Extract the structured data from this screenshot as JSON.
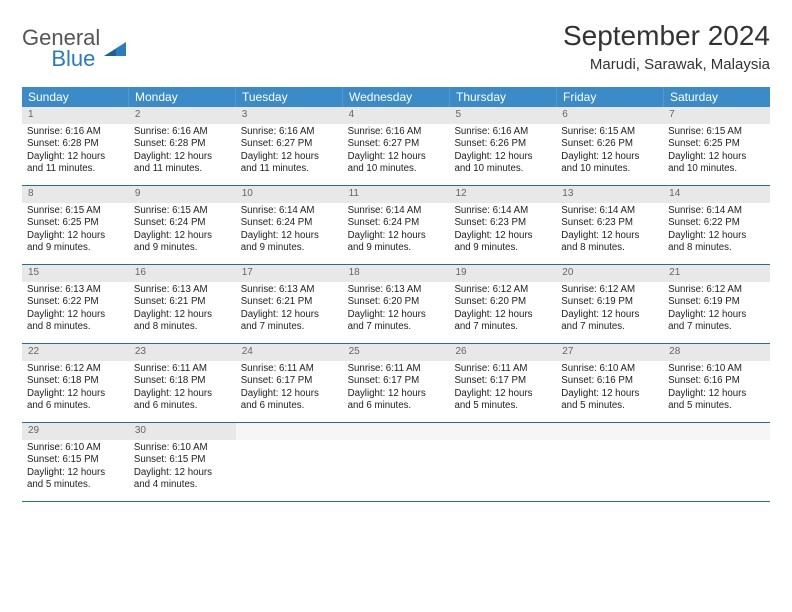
{
  "logo": {
    "line1": "General",
    "line2": "Blue"
  },
  "title": "September 2024",
  "location": "Marudi, Sarawak, Malaysia",
  "colors": {
    "header_bg": "#3b8bc9",
    "week_divider": "#2a6aa0",
    "daynum_bg": "#e8e8e8",
    "brand_blue": "#2a7bbf"
  },
  "weekdays": [
    "Sunday",
    "Monday",
    "Tuesday",
    "Wednesday",
    "Thursday",
    "Friday",
    "Saturday"
  ],
  "weeks": [
    [
      {
        "n": "1",
        "sr": "Sunrise: 6:16 AM",
        "ss": "Sunset: 6:28 PM",
        "d1": "Daylight: 12 hours",
        "d2": "and 11 minutes."
      },
      {
        "n": "2",
        "sr": "Sunrise: 6:16 AM",
        "ss": "Sunset: 6:28 PM",
        "d1": "Daylight: 12 hours",
        "d2": "and 11 minutes."
      },
      {
        "n": "3",
        "sr": "Sunrise: 6:16 AM",
        "ss": "Sunset: 6:27 PM",
        "d1": "Daylight: 12 hours",
        "d2": "and 11 minutes."
      },
      {
        "n": "4",
        "sr": "Sunrise: 6:16 AM",
        "ss": "Sunset: 6:27 PM",
        "d1": "Daylight: 12 hours",
        "d2": "and 10 minutes."
      },
      {
        "n": "5",
        "sr": "Sunrise: 6:16 AM",
        "ss": "Sunset: 6:26 PM",
        "d1": "Daylight: 12 hours",
        "d2": "and 10 minutes."
      },
      {
        "n": "6",
        "sr": "Sunrise: 6:15 AM",
        "ss": "Sunset: 6:26 PM",
        "d1": "Daylight: 12 hours",
        "d2": "and 10 minutes."
      },
      {
        "n": "7",
        "sr": "Sunrise: 6:15 AM",
        "ss": "Sunset: 6:25 PM",
        "d1": "Daylight: 12 hours",
        "d2": "and 10 minutes."
      }
    ],
    [
      {
        "n": "8",
        "sr": "Sunrise: 6:15 AM",
        "ss": "Sunset: 6:25 PM",
        "d1": "Daylight: 12 hours",
        "d2": "and 9 minutes."
      },
      {
        "n": "9",
        "sr": "Sunrise: 6:15 AM",
        "ss": "Sunset: 6:24 PM",
        "d1": "Daylight: 12 hours",
        "d2": "and 9 minutes."
      },
      {
        "n": "10",
        "sr": "Sunrise: 6:14 AM",
        "ss": "Sunset: 6:24 PM",
        "d1": "Daylight: 12 hours",
        "d2": "and 9 minutes."
      },
      {
        "n": "11",
        "sr": "Sunrise: 6:14 AM",
        "ss": "Sunset: 6:24 PM",
        "d1": "Daylight: 12 hours",
        "d2": "and 9 minutes."
      },
      {
        "n": "12",
        "sr": "Sunrise: 6:14 AM",
        "ss": "Sunset: 6:23 PM",
        "d1": "Daylight: 12 hours",
        "d2": "and 9 minutes."
      },
      {
        "n": "13",
        "sr": "Sunrise: 6:14 AM",
        "ss": "Sunset: 6:23 PM",
        "d1": "Daylight: 12 hours",
        "d2": "and 8 minutes."
      },
      {
        "n": "14",
        "sr": "Sunrise: 6:14 AM",
        "ss": "Sunset: 6:22 PM",
        "d1": "Daylight: 12 hours",
        "d2": "and 8 minutes."
      }
    ],
    [
      {
        "n": "15",
        "sr": "Sunrise: 6:13 AM",
        "ss": "Sunset: 6:22 PM",
        "d1": "Daylight: 12 hours",
        "d2": "and 8 minutes."
      },
      {
        "n": "16",
        "sr": "Sunrise: 6:13 AM",
        "ss": "Sunset: 6:21 PM",
        "d1": "Daylight: 12 hours",
        "d2": "and 8 minutes."
      },
      {
        "n": "17",
        "sr": "Sunrise: 6:13 AM",
        "ss": "Sunset: 6:21 PM",
        "d1": "Daylight: 12 hours",
        "d2": "and 7 minutes."
      },
      {
        "n": "18",
        "sr": "Sunrise: 6:13 AM",
        "ss": "Sunset: 6:20 PM",
        "d1": "Daylight: 12 hours",
        "d2": "and 7 minutes."
      },
      {
        "n": "19",
        "sr": "Sunrise: 6:12 AM",
        "ss": "Sunset: 6:20 PM",
        "d1": "Daylight: 12 hours",
        "d2": "and 7 minutes."
      },
      {
        "n": "20",
        "sr": "Sunrise: 6:12 AM",
        "ss": "Sunset: 6:19 PM",
        "d1": "Daylight: 12 hours",
        "d2": "and 7 minutes."
      },
      {
        "n": "21",
        "sr": "Sunrise: 6:12 AM",
        "ss": "Sunset: 6:19 PM",
        "d1": "Daylight: 12 hours",
        "d2": "and 7 minutes."
      }
    ],
    [
      {
        "n": "22",
        "sr": "Sunrise: 6:12 AM",
        "ss": "Sunset: 6:18 PM",
        "d1": "Daylight: 12 hours",
        "d2": "and 6 minutes."
      },
      {
        "n": "23",
        "sr": "Sunrise: 6:11 AM",
        "ss": "Sunset: 6:18 PM",
        "d1": "Daylight: 12 hours",
        "d2": "and 6 minutes."
      },
      {
        "n": "24",
        "sr": "Sunrise: 6:11 AM",
        "ss": "Sunset: 6:17 PM",
        "d1": "Daylight: 12 hours",
        "d2": "and 6 minutes."
      },
      {
        "n": "25",
        "sr": "Sunrise: 6:11 AM",
        "ss": "Sunset: 6:17 PM",
        "d1": "Daylight: 12 hours",
        "d2": "and 6 minutes."
      },
      {
        "n": "26",
        "sr": "Sunrise: 6:11 AM",
        "ss": "Sunset: 6:17 PM",
        "d1": "Daylight: 12 hours",
        "d2": "and 5 minutes."
      },
      {
        "n": "27",
        "sr": "Sunrise: 6:10 AM",
        "ss": "Sunset: 6:16 PM",
        "d1": "Daylight: 12 hours",
        "d2": "and 5 minutes."
      },
      {
        "n": "28",
        "sr": "Sunrise: 6:10 AM",
        "ss": "Sunset: 6:16 PM",
        "d1": "Daylight: 12 hours",
        "d2": "and 5 minutes."
      }
    ],
    [
      {
        "n": "29",
        "sr": "Sunrise: 6:10 AM",
        "ss": "Sunset: 6:15 PM",
        "d1": "Daylight: 12 hours",
        "d2": "and 5 minutes."
      },
      {
        "n": "30",
        "sr": "Sunrise: 6:10 AM",
        "ss": "Sunset: 6:15 PM",
        "d1": "Daylight: 12 hours",
        "d2": "and 4 minutes."
      },
      {
        "n": "",
        "sr": "",
        "ss": "",
        "d1": "",
        "d2": ""
      },
      {
        "n": "",
        "sr": "",
        "ss": "",
        "d1": "",
        "d2": ""
      },
      {
        "n": "",
        "sr": "",
        "ss": "",
        "d1": "",
        "d2": ""
      },
      {
        "n": "",
        "sr": "",
        "ss": "",
        "d1": "",
        "d2": ""
      },
      {
        "n": "",
        "sr": "",
        "ss": "",
        "d1": "",
        "d2": ""
      }
    ]
  ]
}
